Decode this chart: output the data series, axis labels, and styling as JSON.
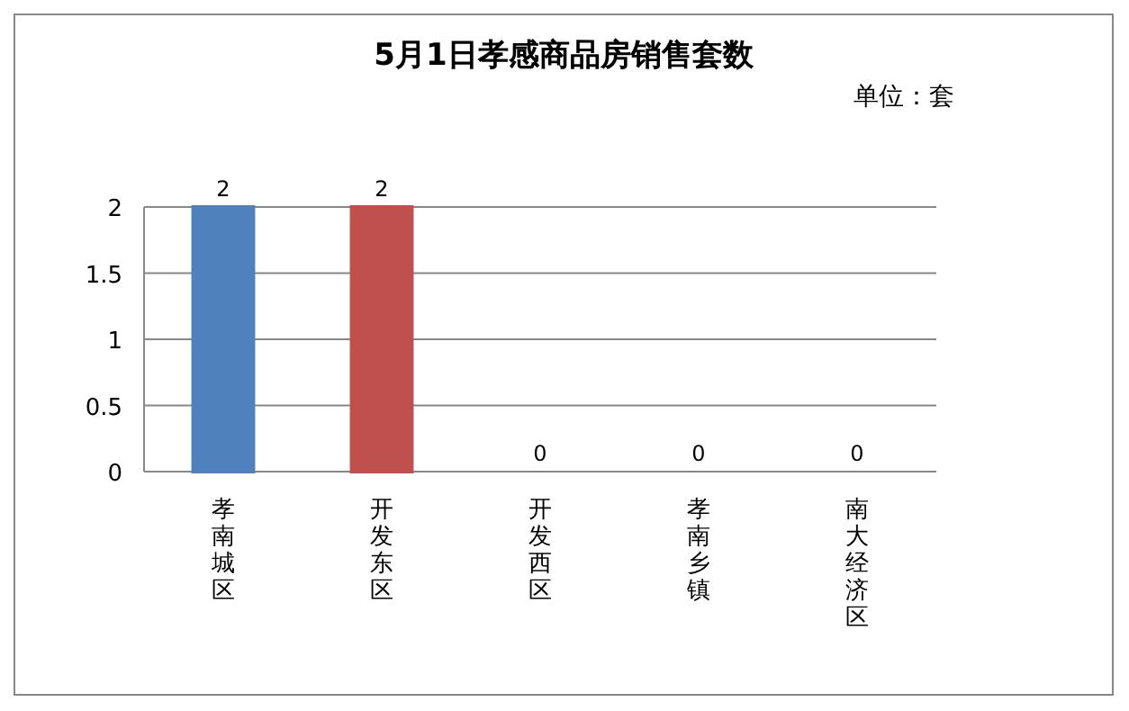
{
  "chart_data": {
    "type": "bar",
    "title": "5月1日孝感商品房销售套数",
    "subtitle": "单位：套",
    "categories": [
      "孝南城区",
      "开发东区",
      "开发西区",
      "孝南乡镇",
      "南大经济区"
    ],
    "values": [
      2,
      2,
      0,
      0,
      0
    ],
    "colors": [
      "#4f81bd",
      "#c0504d",
      "#9bbb59",
      "#8064a2",
      "#4bacc6"
    ],
    "ylim": [
      0,
      2
    ],
    "yticks": [
      0,
      0.5,
      1,
      1.5,
      2
    ],
    "grid": "y",
    "data_labels": true
  }
}
